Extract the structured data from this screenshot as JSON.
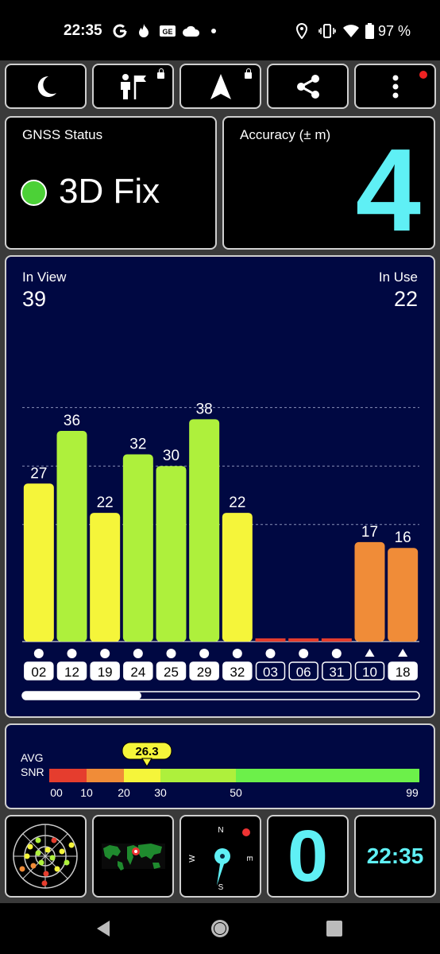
{
  "status_bar": {
    "time": "22:35",
    "left_icons": [
      "google-icon",
      "fire-icon",
      "ge-icon",
      "cloud-icon",
      "dot-icon"
    ],
    "right_icons": [
      "location-icon",
      "vibrate-icon",
      "wifi-icon",
      "battery-icon"
    ],
    "battery": "97 %"
  },
  "toolbar": {
    "buttons": [
      "night-mode-icon",
      "person-flag-icon",
      "navigation-arrow-icon",
      "share-icon",
      "more-vert-icon"
    ]
  },
  "gnss": {
    "title": "GNSS Status",
    "fix": "3D Fix",
    "fix_color": "#4cd137"
  },
  "accuracy": {
    "title": "Accuracy (± m)",
    "value": "4",
    "color": "#5ff0f5"
  },
  "satellites": {
    "in_view_label": "In View",
    "in_view": "39",
    "in_use_label": "In Use",
    "in_use": "22"
  },
  "chart_data": {
    "type": "bar",
    "categories": [
      "02",
      "12",
      "19",
      "24",
      "25",
      "29",
      "32",
      "03",
      "06",
      "31",
      "10",
      "18"
    ],
    "values": [
      27,
      36,
      22,
      32,
      30,
      38,
      22,
      0,
      0,
      0,
      17,
      16
    ],
    "value_labels": [
      "27",
      "36",
      "22",
      "32",
      "30",
      "38",
      "22",
      "",
      "",
      "",
      "17",
      "16"
    ],
    "markers": [
      "circle",
      "circle",
      "circle",
      "circle",
      "circle",
      "circle",
      "circle",
      "circle",
      "circle",
      "circle",
      "triangle",
      "triangle"
    ],
    "in_use": [
      true,
      true,
      true,
      true,
      true,
      true,
      true,
      false,
      false,
      false,
      false,
      true
    ],
    "bar_colors": [
      "#f5f53a",
      "#aef03c",
      "#f5f53a",
      "#aef03c",
      "#aef03c",
      "#aef03c",
      "#f5f53a",
      "#e53d2e",
      "#e53d2e",
      "#e53d2e",
      "#f08c38",
      "#f08c38"
    ],
    "ylim": [
      0,
      50
    ],
    "gridlines": [
      20,
      30,
      40
    ],
    "scroll_fraction": 0.3
  },
  "snr": {
    "label_line1": "AVG",
    "label_line2": "SNR",
    "avg": "26.3",
    "avg_value": 26.3,
    "ticks": [
      "00",
      "10",
      "20",
      "30",
      "50",
      "99"
    ],
    "segments": [
      {
        "from": 0,
        "to": 10,
        "color": "#e53d2e"
      },
      {
        "from": 10,
        "to": 20,
        "color": "#f08c38"
      },
      {
        "from": 20,
        "to": 30,
        "color": "#f5f53a"
      },
      {
        "from": 30,
        "to": 50,
        "color": "#aef03c"
      },
      {
        "from": 50,
        "to": 99,
        "color": "#6cf04a"
      }
    ]
  },
  "bottom": {
    "radar_icon": "sky-plot-icon",
    "map_icon": "world-map-icon",
    "compass": {
      "n": "N",
      "s": "S",
      "e": "E",
      "w": "W"
    },
    "speed": "0",
    "clock": "22:35"
  },
  "nav_bar": [
    "back-icon",
    "home-icon",
    "recents-icon"
  ]
}
